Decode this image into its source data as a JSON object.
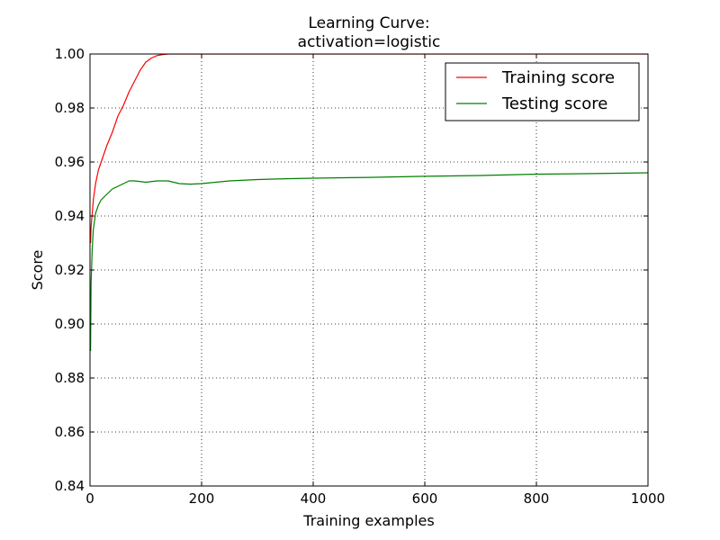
{
  "chart_data": {
    "type": "line",
    "title_line1": "Learning Curve:",
    "title_line2": "activation=logistic",
    "xlabel": "Training examples",
    "ylabel": "Score",
    "xlim": [
      0,
      1000
    ],
    "ylim": [
      0.84,
      1.0
    ],
    "xticks": [
      0,
      200,
      400,
      600,
      800,
      1000
    ],
    "xtick_labels": [
      "0",
      "200",
      "400",
      "600",
      "800",
      "1000"
    ],
    "yticks": [
      0.84,
      0.86,
      0.88,
      0.9,
      0.92,
      0.94,
      0.96,
      0.98,
      1.0
    ],
    "ytick_labels": [
      "0.84",
      "0.86",
      "0.88",
      "0.90",
      "0.92",
      "0.94",
      "0.96",
      "0.98",
      "1.00"
    ],
    "grid": true,
    "legend_position": "top-right",
    "series": [
      {
        "name": "Training score",
        "color": "#ff0000",
        "x": [
          1,
          2,
          4,
          6,
          10,
          15,
          20,
          30,
          40,
          50,
          60,
          70,
          80,
          90,
          100,
          110,
          120,
          130,
          140,
          150,
          160,
          180,
          1000
        ],
        "y": [
          0.93,
          0.936,
          0.941,
          0.946,
          0.952,
          0.957,
          0.96,
          0.966,
          0.971,
          0.977,
          0.981,
          0.986,
          0.99,
          0.994,
          0.997,
          0.9985,
          0.9994,
          0.9998,
          1.0,
          1.0,
          1.0,
          1.0,
          1.0
        ]
      },
      {
        "name": "Testing score",
        "color": "#008000",
        "x": [
          1,
          2,
          4,
          6,
          10,
          15,
          20,
          30,
          40,
          50,
          60,
          70,
          80,
          100,
          120,
          140,
          160,
          180,
          200,
          250,
          300,
          350,
          400,
          500,
          600,
          700,
          800,
          900,
          1000
        ],
        "y": [
          0.89,
          0.915,
          0.928,
          0.935,
          0.941,
          0.944,
          0.946,
          0.948,
          0.95,
          0.951,
          0.952,
          0.953,
          0.953,
          0.9525,
          0.953,
          0.953,
          0.952,
          0.9518,
          0.952,
          0.953,
          0.9535,
          0.9538,
          0.954,
          0.9543,
          0.9547,
          0.955,
          0.9555,
          0.9557,
          0.956
        ]
      }
    ]
  }
}
